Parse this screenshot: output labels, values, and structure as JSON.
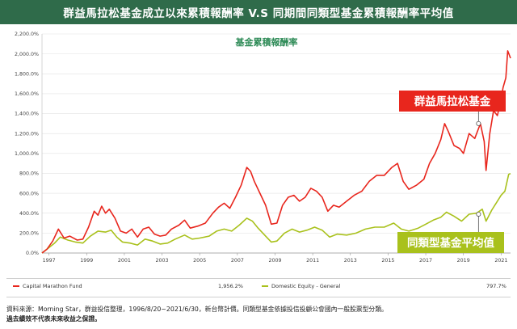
{
  "header": {
    "title": "群益馬拉松基金成立以來累積報酬率  V.S  同期間同類型基金累積報酬率平均值"
  },
  "colors": {
    "header_bg": "#2f6b4a",
    "fund": "#e8261d",
    "peer": "#a9c11c",
    "subtitle": "#2e8b57"
  },
  "chart_data": {
    "type": "line",
    "title": "基金累積報酬率",
    "xlabel": "",
    "ylabel": "",
    "ylim": [
      0,
      2200
    ],
    "xlim": [
      1996.63,
      2021.5
    ],
    "grid": true,
    "legend_position": "bottom",
    "yticks": [
      "0.0%",
      "200.0%",
      "400.0%",
      "600.0%",
      "800.0%",
      "1,000.0%",
      "1,200.0%",
      "1,400.0%",
      "1,600.0%",
      "1,800.0%",
      "2,000.0%",
      "2,200.0%"
    ],
    "xticks": [
      "1997",
      "1999",
      "2001",
      "2003",
      "2005",
      "2007",
      "2009",
      "2011",
      "2013",
      "2015",
      "2017",
      "2019",
      "2021"
    ],
    "series": [
      {
        "name": "Capital Marathon Fund",
        "end_value_label": "1,956.2%",
        "callout": "群益馬拉松基金",
        "callout_at": [
          2019.8,
          1300
        ],
        "points": [
          [
            1996.63,
            0
          ],
          [
            1996.9,
            40
          ],
          [
            1997.2,
            120
          ],
          [
            1997.5,
            240
          ],
          [
            1997.8,
            150
          ],
          [
            1998.1,
            170
          ],
          [
            1998.5,
            130
          ],
          [
            1998.8,
            140
          ],
          [
            1999.1,
            260
          ],
          [
            1999.4,
            420
          ],
          [
            1999.6,
            380
          ],
          [
            1999.8,
            470
          ],
          [
            2000.0,
            400
          ],
          [
            2000.2,
            440
          ],
          [
            2000.5,
            350
          ],
          [
            2000.8,
            220
          ],
          [
            2001.1,
            200
          ],
          [
            2001.4,
            240
          ],
          [
            2001.7,
            160
          ],
          [
            2002.0,
            240
          ],
          [
            2002.3,
            260
          ],
          [
            2002.6,
            190
          ],
          [
            2002.9,
            170
          ],
          [
            2003.2,
            180
          ],
          [
            2003.5,
            240
          ],
          [
            2003.9,
            280
          ],
          [
            2004.2,
            330
          ],
          [
            2004.5,
            250
          ],
          [
            2004.9,
            270
          ],
          [
            2005.3,
            300
          ],
          [
            2005.7,
            400
          ],
          [
            2006.0,
            460
          ],
          [
            2006.3,
            500
          ],
          [
            2006.6,
            450
          ],
          [
            2006.9,
            560
          ],
          [
            2007.2,
            680
          ],
          [
            2007.5,
            860
          ],
          [
            2007.7,
            820
          ],
          [
            2007.9,
            720
          ],
          [
            2008.2,
            600
          ],
          [
            2008.5,
            480
          ],
          [
            2008.8,
            290
          ],
          [
            2009.1,
            300
          ],
          [
            2009.4,
            480
          ],
          [
            2009.7,
            560
          ],
          [
            2010.0,
            580
          ],
          [
            2010.3,
            520
          ],
          [
            2010.6,
            560
          ],
          [
            2010.9,
            650
          ],
          [
            2011.2,
            620
          ],
          [
            2011.5,
            560
          ],
          [
            2011.8,
            420
          ],
          [
            2012.1,
            480
          ],
          [
            2012.4,
            460
          ],
          [
            2012.8,
            520
          ],
          [
            2013.2,
            580
          ],
          [
            2013.6,
            620
          ],
          [
            2014.0,
            720
          ],
          [
            2014.4,
            780
          ],
          [
            2014.8,
            780
          ],
          [
            2015.2,
            860
          ],
          [
            2015.5,
            900
          ],
          [
            2015.8,
            720
          ],
          [
            2016.1,
            640
          ],
          [
            2016.5,
            680
          ],
          [
            2016.9,
            740
          ],
          [
            2017.2,
            900
          ],
          [
            2017.5,
            1000
          ],
          [
            2017.8,
            1140
          ],
          [
            2018.0,
            1300
          ],
          [
            2018.2,
            1220
          ],
          [
            2018.5,
            1080
          ],
          [
            2018.8,
            1050
          ],
          [
            2019.0,
            1000
          ],
          [
            2019.3,
            1200
          ],
          [
            2019.6,
            1150
          ],
          [
            2019.9,
            1300
          ],
          [
            2020.1,
            1120
          ],
          [
            2020.2,
            830
          ],
          [
            2020.4,
            1200
          ],
          [
            2020.6,
            1430
          ],
          [
            2020.8,
            1380
          ],
          [
            2021.0,
            1540
          ],
          [
            2021.1,
            1660
          ],
          [
            2021.25,
            1760
          ],
          [
            2021.35,
            2030
          ],
          [
            2021.5,
            1956.2
          ]
        ]
      },
      {
        "name": "Domestic Equity - General",
        "end_value_label": "797.7%",
        "callout": "同類型基金平均值",
        "callout_at": [
          2019.8,
          390
        ],
        "points": [
          [
            1996.63,
            0
          ],
          [
            1996.9,
            40
          ],
          [
            1997.3,
            100
          ],
          [
            1997.6,
            160
          ],
          [
            1998.0,
            130
          ],
          [
            1998.4,
            110
          ],
          [
            1998.8,
            100
          ],
          [
            1999.2,
            170
          ],
          [
            1999.6,
            220
          ],
          [
            2000.0,
            210
          ],
          [
            2000.3,
            230
          ],
          [
            2000.6,
            160
          ],
          [
            2000.9,
            110
          ],
          [
            2001.3,
            100
          ],
          [
            2001.7,
            80
          ],
          [
            2002.1,
            140
          ],
          [
            2002.5,
            120
          ],
          [
            2002.9,
            90
          ],
          [
            2003.3,
            100
          ],
          [
            2003.7,
            140
          ],
          [
            2004.2,
            180
          ],
          [
            2004.6,
            140
          ],
          [
            2005.0,
            150
          ],
          [
            2005.5,
            170
          ],
          [
            2005.9,
            220
          ],
          [
            2006.3,
            240
          ],
          [
            2006.7,
            220
          ],
          [
            2007.1,
            280
          ],
          [
            2007.5,
            350
          ],
          [
            2007.8,
            320
          ],
          [
            2008.1,
            250
          ],
          [
            2008.5,
            170
          ],
          [
            2008.8,
            110
          ],
          [
            2009.1,
            120
          ],
          [
            2009.5,
            200
          ],
          [
            2009.9,
            240
          ],
          [
            2010.3,
            210
          ],
          [
            2010.7,
            230
          ],
          [
            2011.1,
            260
          ],
          [
            2011.5,
            230
          ],
          [
            2011.9,
            160
          ],
          [
            2012.3,
            190
          ],
          [
            2012.8,
            180
          ],
          [
            2013.3,
            200
          ],
          [
            2013.8,
            240
          ],
          [
            2014.3,
            260
          ],
          [
            2014.8,
            260
          ],
          [
            2015.3,
            300
          ],
          [
            2015.7,
            240
          ],
          [
            2016.1,
            220
          ],
          [
            2016.6,
            250
          ],
          [
            2017.0,
            290
          ],
          [
            2017.4,
            330
          ],
          [
            2017.8,
            360
          ],
          [
            2018.1,
            410
          ],
          [
            2018.5,
            370
          ],
          [
            2018.9,
            320
          ],
          [
            2019.3,
            390
          ],
          [
            2019.7,
            400
          ],
          [
            2020.0,
            440
          ],
          [
            2020.2,
            320
          ],
          [
            2020.5,
            430
          ],
          [
            2020.8,
            520
          ],
          [
            2021.0,
            580
          ],
          [
            2021.2,
            620
          ],
          [
            2021.4,
            790
          ],
          [
            2021.5,
            797.7
          ]
        ]
      }
    ]
  },
  "footer": {
    "source": "資料來源：Morning Star，群益投信整理，1996/8/20~2021/6/30，新台幣計價。同類型基金依據投信投顧公會國內一般股票型分類。",
    "disclaimer": "過去績效不代表未來收益之保證。"
  }
}
